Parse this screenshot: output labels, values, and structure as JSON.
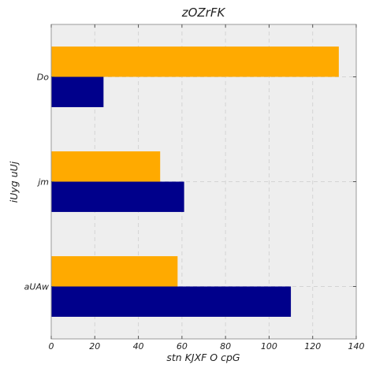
{
  "chart_data": {
    "type": "bar",
    "orientation": "horizontal",
    "title": "zOZrFK",
    "xlabel": "stn KJXF O cpG",
    "ylabel": "iUyg uUj",
    "categories": [
      "aUAw",
      "jm",
      "Do"
    ],
    "series": [
      {
        "values": [
          110,
          61,
          24
        ],
        "color": "#00008b"
      },
      {
        "values": [
          58,
          50,
          132
        ],
        "color": "#ffaa00"
      }
    ],
    "xlim": [
      0,
      140
    ],
    "xticks": [
      0,
      20,
      40,
      60,
      80,
      100,
      120,
      140
    ],
    "grid": true,
    "background": "#eeeeee"
  }
}
